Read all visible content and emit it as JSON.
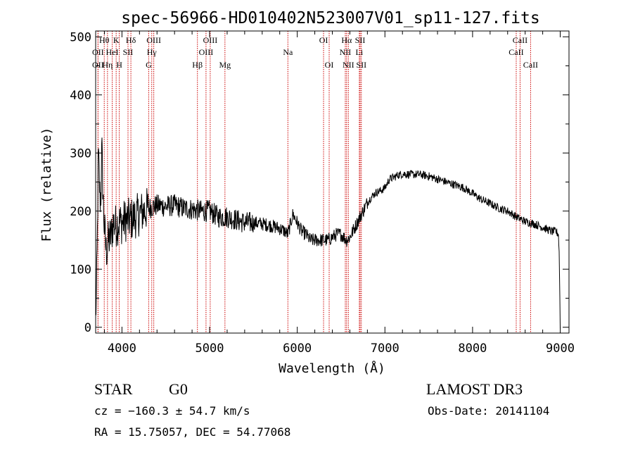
{
  "chart_data": {
    "type": "line",
    "title": "spec-56966-HD010402N523007V01_sp11-127.fits",
    "xlabel": "Wavelength (Å)",
    "ylabel": "Flux (relative)",
    "xlim": [
      3700,
      9100
    ],
    "ylim": [
      -10,
      510
    ],
    "xticks": [
      4000,
      5000,
      6000,
      7000,
      8000,
      9000
    ],
    "yticks": [
      0,
      100,
      200,
      300,
      400,
      500
    ],
    "series": [
      {
        "name": "spectrum",
        "anchors_x": [
          3700,
          3710,
          3720,
          3730,
          3740,
          3750,
          3760,
          3770,
          3780,
          3790,
          3800,
          3820,
          3850,
          3880,
          3900,
          3930,
          3960,
          4000,
          4050,
          4100,
          4150,
          4200,
          4300,
          4400,
          4500,
          4600,
          4700,
          4800,
          4900,
          5000,
          5100,
          5200,
          5300,
          5400,
          5500,
          5600,
          5700,
          5800,
          5860,
          5890,
          5910,
          5950,
          6000,
          6050,
          6100,
          6150,
          6200,
          6250,
          6300,
          6350,
          6400,
          6450,
          6500,
          6530,
          6563,
          6600,
          6650,
          6700,
          6750,
          6800,
          6850,
          6900,
          6950,
          7000,
          7050,
          7100,
          7150,
          7200,
          7300,
          7400,
          7500,
          7600,
          7700,
          7800,
          7900,
          8000,
          8100,
          8200,
          8300,
          8400,
          8500,
          8600,
          8700,
          8800,
          8900,
          8950,
          8980,
          8990,
          9000
        ],
        "anchors_y": [
          20,
          60,
          160,
          300,
          260,
          220,
          230,
          310,
          250,
          200,
          170,
          130,
          150,
          160,
          180,
          175,
          180,
          180,
          185,
          185,
          190,
          195,
          205,
          210,
          208,
          210,
          205,
          203,
          200,
          200,
          190,
          190,
          185,
          180,
          180,
          178,
          175,
          170,
          165,
          160,
          170,
          195,
          180,
          165,
          160,
          150,
          150,
          150,
          150,
          150,
          155,
          160,
          160,
          155,
          150,
          155,
          170,
          185,
          200,
          215,
          225,
          232,
          235,
          240,
          255,
          258,
          262,
          264,
          263,
          263,
          260,
          255,
          250,
          245,
          240,
          230,
          220,
          213,
          205,
          200,
          190,
          182,
          178,
          172,
          165,
          165,
          160,
          120,
          0
        ],
        "noise_amplitude": 12
      }
    ],
    "spectral_lines": [
      {
        "label": "Hθ",
        "x": 3798,
        "row": 0
      },
      {
        "label": "K",
        "x": 3934,
        "row": 0
      },
      {
        "label": "Hδ",
        "x": 4102,
        "row": 0
      },
      {
        "label": "OIII",
        "x": 4363,
        "row": 0
      },
      {
        "label": "OIII",
        "x": 5007,
        "row": 0
      },
      {
        "label": "OI",
        "x": 6300,
        "row": 0
      },
      {
        "label": "Hα",
        "x": 6563,
        "row": 0
      },
      {
        "label": "SII",
        "x": 6717,
        "row": 0
      },
      {
        "label": "CaII",
        "x": 8542,
        "row": 0
      },
      {
        "label": "OII",
        "x": 3727,
        "row": 1
      },
      {
        "label": "HeI",
        "x": 3889,
        "row": 1
      },
      {
        "label": "SII",
        "x": 4069,
        "row": 1
      },
      {
        "label": "Hγ",
        "x": 4340,
        "row": 1
      },
      {
        "label": "OIII",
        "x": 4959,
        "row": 1
      },
      {
        "label": "Na",
        "x": 5893,
        "row": 1
      },
      {
        "label": "NII",
        "x": 6548,
        "row": 1
      },
      {
        "label": "Li",
        "x": 6708,
        "row": 1
      },
      {
        "label": "CaII",
        "x": 8498,
        "row": 1
      },
      {
        "label": "OII",
        "x": 3727,
        "row": 2
      },
      {
        "label": "Hη",
        "x": 3835,
        "row": 2
      },
      {
        "label": "H",
        "x": 3969,
        "row": 2
      },
      {
        "label": "G",
        "x": 4305,
        "row": 2
      },
      {
        "label": "Hβ",
        "x": 4861,
        "row": 2
      },
      {
        "label": "Mg",
        "x": 5175,
        "row": 2
      },
      {
        "label": "OI",
        "x": 6364,
        "row": 2
      },
      {
        "label": "NII",
        "x": 6583,
        "row": 2
      },
      {
        "label": "SII",
        "x": 6731,
        "row": 2
      },
      {
        "label": "CaII",
        "x": 8662,
        "row": 2
      }
    ],
    "colors": {
      "spectrum": "#000000",
      "line_marker": "#cc0000",
      "axes": "#000000"
    }
  },
  "info": {
    "class": "STAR",
    "subclass": "G0",
    "survey": "LAMOST DR3",
    "cz": "cz = −160.3 ± 54.7 km/s",
    "obs_date": "Obs-Date: 20141104",
    "radec": "RA =  15.75057, DEC =  54.77068"
  }
}
